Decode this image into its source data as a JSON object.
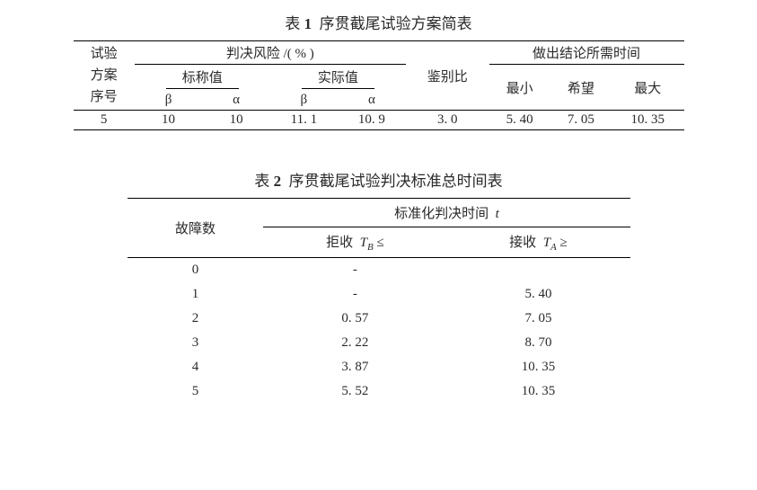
{
  "table1": {
    "caption_prefix": "表",
    "caption_num": "1",
    "caption_text": "序贯截尾试验方案简表",
    "header": {
      "col1": "试验\n方案\n序号",
      "risk_group": "判决风险 /( % )",
      "nominal": "标称值",
      "actual": "实际值",
      "beta": "β",
      "alpha": "α",
      "ratio": "鉴别比",
      "time_group": "做出结论所需时间",
      "t_min": "最小",
      "t_hope": "希望",
      "t_max": "最大"
    },
    "row": {
      "id": "5",
      "nom_b": "10",
      "nom_a": "10",
      "act_b": "11. 1",
      "act_a": "10. 9",
      "ratio": "3. 0",
      "tmin": "5. 40",
      "thope": "7. 05",
      "tmax": "10. 35"
    }
  },
  "table2": {
    "caption_prefix": "表",
    "caption_num": "2",
    "caption_text": "序贯截尾试验判决标准总时间表",
    "header": {
      "faults": "故障数",
      "std_time": "标准化判决时间",
      "t_sym": "t",
      "reject_label": "拒收",
      "reject_sym": "T",
      "reject_sub": "B",
      "reject_op": "≤",
      "accept_label": "接收",
      "accept_sym": "T",
      "accept_sub": "A",
      "accept_op": "≥"
    },
    "rows": [
      {
        "n": "0",
        "rej": "-",
        "acc": ""
      },
      {
        "n": "1",
        "rej": "-",
        "acc": "5. 40"
      },
      {
        "n": "2",
        "rej": "0. 57",
        "acc": "7. 05"
      },
      {
        "n": "3",
        "rej": "2. 22",
        "acc": "8. 70"
      },
      {
        "n": "4",
        "rej": "3. 87",
        "acc": "10. 35"
      },
      {
        "n": "5",
        "rej": "5. 52",
        "acc": "10. 35"
      }
    ]
  }
}
